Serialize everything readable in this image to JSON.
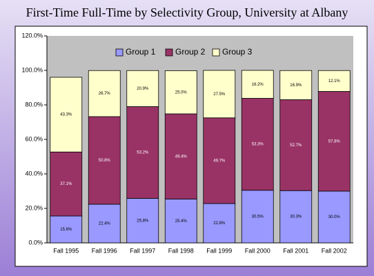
{
  "chart_data": {
    "type": "stacked-bar",
    "title": "First-Time Full-Time by Selectivity Group, University at Albany",
    "categories": [
      "Fall 1995",
      "Fall 1996",
      "Fall 1997",
      "Fall 1998",
      "Fall 1999",
      "Fall 2000",
      "Fall 2001",
      "Fall 2002"
    ],
    "series": [
      {
        "name": "Group 1",
        "color": "#9999ff",
        "values": [
          15.6,
          22.4,
          25.8,
          25.4,
          22.8,
          30.5,
          30.3,
          30.0
        ],
        "value_labels": [
          "15.6%",
          "22.4%",
          "25.8%",
          "25.4%",
          "22.8%",
          "30.5%",
          "30.3%",
          "30.0%"
        ]
      },
      {
        "name": "Group 2",
        "color": "#993366",
        "values": [
          37.1,
          50.8,
          53.2,
          49.4,
          49.7,
          53.3,
          52.7,
          57.8
        ],
        "value_labels": [
          "37.1%",
          "50.8%",
          "53.2%",
          "49.4%",
          "49.7%",
          "53.3%",
          "52.7%",
          "57.8%"
        ]
      },
      {
        "name": "Group 3",
        "color": "#ffffcc",
        "values": [
          43.3,
          26.7,
          20.9,
          25.0,
          27.5,
          16.2,
          16.9,
          12.1
        ],
        "value_labels": [
          "43.3%",
          "26.7%",
          "20.9%",
          "25.0%",
          "27.5%",
          "16.2%",
          "16.9%",
          "12.1%"
        ]
      }
    ],
    "ylim": [
      0,
      120
    ],
    "yticks": [
      {
        "value": 0,
        "label": "0.0%"
      },
      {
        "value": 20,
        "label": "20.0%"
      },
      {
        "value": 40,
        "label": "40.0%"
      },
      {
        "value": 60,
        "label": "60.0%"
      },
      {
        "value": 80,
        "label": "80.0%"
      },
      {
        "value": 100,
        "label": "100.0%"
      },
      {
        "value": 120,
        "label": "120.0%"
      }
    ],
    "legend": "top"
  }
}
